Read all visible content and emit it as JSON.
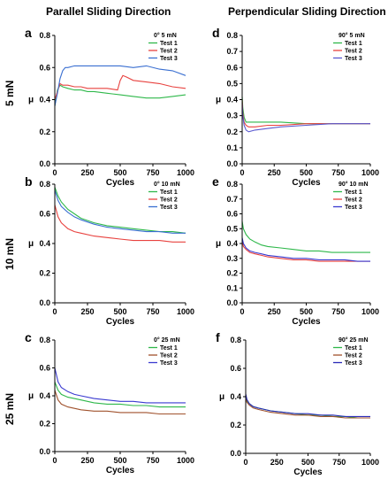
{
  "columns": [
    "Parallel Sliding Direction",
    "Perpendicular Sliding Direction"
  ],
  "rows": [
    "5 mN",
    "10 mN",
    "25 mN"
  ],
  "chart_data": [
    {
      "id": "a",
      "type": "line",
      "letter": "a",
      "legend_title": "0°   5 mN",
      "xlabel": "Cycles",
      "ylabel": "μ",
      "xlim": [
        0,
        1000
      ],
      "ylim": [
        0.0,
        0.8
      ],
      "xticks": [
        0,
        250,
        500,
        750,
        1000
      ],
      "yticks": [
        0.0,
        0.2,
        0.4,
        0.6,
        0.8
      ],
      "legend_position": "top-right",
      "series": [
        {
          "name": "Test 1",
          "color": "#2eb84a",
          "x": [
            0,
            20,
            40,
            60,
            100,
            150,
            200,
            250,
            300,
            400,
            500,
            600,
            700,
            800,
            900,
            1000
          ],
          "y": [
            0.36,
            0.46,
            0.49,
            0.48,
            0.47,
            0.46,
            0.46,
            0.45,
            0.45,
            0.44,
            0.43,
            0.42,
            0.41,
            0.41,
            0.42,
            0.43
          ]
        },
        {
          "name": "Test 2",
          "color": "#e8423f",
          "x": [
            0,
            20,
            40,
            60,
            100,
            150,
            200,
            250,
            300,
            400,
            480,
            500,
            520,
            550,
            600,
            700,
            800,
            900,
            1000
          ],
          "y": [
            0.4,
            0.45,
            0.5,
            0.49,
            0.49,
            0.48,
            0.48,
            0.47,
            0.47,
            0.47,
            0.46,
            0.52,
            0.55,
            0.54,
            0.52,
            0.51,
            0.5,
            0.48,
            0.47
          ]
        },
        {
          "name": "Test 3",
          "color": "#3a6fd1",
          "x": [
            0,
            20,
            40,
            60,
            80,
            100,
            150,
            200,
            250,
            300,
            400,
            500,
            600,
            700,
            800,
            900,
            1000
          ],
          "y": [
            0.36,
            0.44,
            0.53,
            0.58,
            0.6,
            0.6,
            0.61,
            0.61,
            0.61,
            0.61,
            0.61,
            0.61,
            0.6,
            0.61,
            0.59,
            0.58,
            0.55
          ]
        }
      ]
    },
    {
      "id": "d",
      "type": "line",
      "letter": "d",
      "legend_title": "90°   5 mN",
      "xlabel": "Cycles",
      "ylabel": "μ",
      "xlim": [
        0,
        1000
      ],
      "ylim": [
        0.0,
        0.8
      ],
      "xticks": [
        0,
        250,
        500,
        750,
        1000
      ],
      "yticks": [
        0.0,
        0.1,
        0.2,
        0.3,
        0.4,
        0.5,
        0.6,
        0.7,
        0.8
      ],
      "legend_position": "top-right",
      "series": [
        {
          "name": "Test 1",
          "color": "#2eb84a",
          "x": [
            0,
            5,
            15,
            30,
            50,
            100,
            200,
            300,
            500,
            700,
            1000
          ],
          "y": [
            0.42,
            0.35,
            0.29,
            0.26,
            0.26,
            0.26,
            0.26,
            0.26,
            0.25,
            0.25,
            0.25
          ]
        },
        {
          "name": "Test 2",
          "color": "#e8423f",
          "x": [
            0,
            5,
            15,
            30,
            50,
            100,
            200,
            300,
            500,
            700,
            1000
          ],
          "y": [
            0.4,
            0.32,
            0.26,
            0.24,
            0.23,
            0.23,
            0.24,
            0.24,
            0.25,
            0.25,
            0.25
          ]
        },
        {
          "name": "Test 3",
          "color": "#5a5ad0",
          "x": [
            0,
            5,
            15,
            30,
            50,
            100,
            200,
            300,
            500,
            700,
            1000
          ],
          "y": [
            0.38,
            0.3,
            0.24,
            0.21,
            0.2,
            0.21,
            0.22,
            0.23,
            0.24,
            0.25,
            0.25
          ]
        }
      ]
    },
    {
      "id": "b",
      "type": "line",
      "letter": "b",
      "legend_title": "0°  10 mN",
      "xlabel": "Cycles",
      "ylabel": "μ",
      "xlim": [
        0,
        1000
      ],
      "ylim": [
        0.0,
        0.8
      ],
      "xticks": [
        0,
        250,
        500,
        750,
        1000
      ],
      "yticks": [
        0.0,
        0.2,
        0.4,
        0.6,
        0.8
      ],
      "legend_position": "top-right",
      "series": [
        {
          "name": "Test 1",
          "color": "#2eb84a",
          "x": [
            0,
            25,
            50,
            100,
            150,
            200,
            300,
            400,
            500,
            600,
            700,
            800,
            900,
            1000
          ],
          "y": [
            0.78,
            0.72,
            0.68,
            0.63,
            0.6,
            0.57,
            0.54,
            0.52,
            0.51,
            0.5,
            0.49,
            0.48,
            0.48,
            0.47
          ]
        },
        {
          "name": "Test 2",
          "color": "#e8423f",
          "x": [
            0,
            25,
            50,
            100,
            150,
            200,
            300,
            400,
            500,
            600,
            700,
            800,
            900,
            1000
          ],
          "y": [
            0.66,
            0.58,
            0.54,
            0.5,
            0.48,
            0.47,
            0.45,
            0.44,
            0.43,
            0.42,
            0.42,
            0.42,
            0.41,
            0.41
          ]
        },
        {
          "name": "Test 3",
          "color": "#3a6fd1",
          "x": [
            0,
            25,
            50,
            100,
            150,
            200,
            300,
            400,
            500,
            600,
            700,
            800,
            900,
            1000
          ],
          "y": [
            0.76,
            0.69,
            0.65,
            0.61,
            0.58,
            0.56,
            0.53,
            0.51,
            0.5,
            0.49,
            0.48,
            0.48,
            0.47,
            0.47
          ]
        }
      ]
    },
    {
      "id": "e",
      "type": "line",
      "letter": "e",
      "legend_title": "90° 10 mN",
      "xlabel": "Cycles",
      "ylabel": "μ",
      "xlim": [
        0,
        1000
      ],
      "ylim": [
        0.0,
        0.8
      ],
      "xticks": [
        0,
        250,
        500,
        750,
        1000
      ],
      "yticks": [
        0.0,
        0.1,
        0.2,
        0.3,
        0.4,
        0.5,
        0.6,
        0.7,
        0.8
      ],
      "legend_position": "top-right",
      "series": [
        {
          "name": "Test 1",
          "color": "#2eb84a",
          "x": [
            0,
            10,
            30,
            60,
            100,
            150,
            200,
            300,
            400,
            500,
            600,
            700,
            800,
            900,
            1000
          ],
          "y": [
            0.55,
            0.5,
            0.46,
            0.43,
            0.41,
            0.39,
            0.38,
            0.37,
            0.36,
            0.35,
            0.35,
            0.34,
            0.34,
            0.34,
            0.34
          ]
        },
        {
          "name": "Test 2",
          "color": "#e8423f",
          "x": [
            0,
            10,
            30,
            60,
            100,
            150,
            200,
            300,
            400,
            500,
            600,
            700,
            800,
            900,
            1000
          ],
          "y": [
            0.42,
            0.38,
            0.36,
            0.34,
            0.33,
            0.32,
            0.31,
            0.3,
            0.29,
            0.29,
            0.28,
            0.28,
            0.28,
            0.28,
            0.28
          ]
        },
        {
          "name": "Test 3",
          "color": "#3a3ad0",
          "x": [
            0,
            10,
            30,
            60,
            100,
            150,
            200,
            300,
            400,
            500,
            600,
            700,
            800,
            900,
            1000
          ],
          "y": [
            0.44,
            0.4,
            0.37,
            0.35,
            0.34,
            0.33,
            0.32,
            0.31,
            0.3,
            0.3,
            0.29,
            0.29,
            0.29,
            0.28,
            0.28
          ]
        }
      ]
    },
    {
      "id": "c",
      "type": "line",
      "letter": "c",
      "legend_title": "0°  25 mN",
      "xlabel": "Cycles",
      "ylabel": "μ",
      "xlim": [
        0,
        1000
      ],
      "ylim": [
        0.0,
        0.8
      ],
      "xticks": [
        0,
        250,
        500,
        750,
        1000
      ],
      "yticks": [
        0.0,
        0.2,
        0.4,
        0.6,
        0.8
      ],
      "legend_position": "top-right",
      "series": [
        {
          "name": "Test 1",
          "color": "#2eb84a",
          "x": [
            0,
            25,
            50,
            100,
            150,
            200,
            300,
            400,
            500,
            600,
            700,
            800,
            900,
            1000
          ],
          "y": [
            0.5,
            0.44,
            0.41,
            0.39,
            0.38,
            0.37,
            0.35,
            0.34,
            0.34,
            0.33,
            0.33,
            0.32,
            0.32,
            0.32
          ]
        },
        {
          "name": "Test 2",
          "color": "#a0522d",
          "x": [
            0,
            25,
            50,
            100,
            150,
            200,
            300,
            400,
            500,
            600,
            700,
            800,
            900,
            1000
          ],
          "y": [
            0.44,
            0.37,
            0.34,
            0.32,
            0.31,
            0.3,
            0.29,
            0.29,
            0.28,
            0.28,
            0.28,
            0.27,
            0.27,
            0.27
          ]
        },
        {
          "name": "Test 3",
          "color": "#3a3ad0",
          "x": [
            0,
            25,
            50,
            100,
            150,
            200,
            300,
            400,
            500,
            600,
            700,
            800,
            900,
            1000
          ],
          "y": [
            0.6,
            0.5,
            0.46,
            0.43,
            0.41,
            0.4,
            0.38,
            0.37,
            0.36,
            0.36,
            0.35,
            0.35,
            0.35,
            0.35
          ]
        }
      ]
    },
    {
      "id": "f",
      "type": "line",
      "letter": "f",
      "legend_title": "90° 25 mN",
      "xlabel": "Cycles",
      "ylabel": "μ",
      "xlim": [
        0,
        1000
      ],
      "ylim": [
        0.0,
        0.8
      ],
      "xticks": [
        0,
        250,
        500,
        750,
        1000
      ],
      "yticks": [
        0.0,
        0.2,
        0.4,
        0.6,
        0.8
      ],
      "legend_position": "top-right",
      "series": [
        {
          "name": "Test 1",
          "color": "#2eb84a",
          "x": [
            0,
            10,
            30,
            60,
            100,
            150,
            200,
            300,
            400,
            500,
            600,
            700,
            800,
            900,
            1000
          ],
          "y": [
            0.4,
            0.37,
            0.35,
            0.33,
            0.32,
            0.31,
            0.3,
            0.29,
            0.28,
            0.27,
            0.27,
            0.26,
            0.26,
            0.25,
            0.25
          ]
        },
        {
          "name": "Test 2",
          "color": "#a0522d",
          "x": [
            0,
            10,
            30,
            60,
            100,
            150,
            200,
            300,
            400,
            500,
            600,
            700,
            800,
            900,
            1000
          ],
          "y": [
            0.39,
            0.36,
            0.34,
            0.32,
            0.31,
            0.3,
            0.29,
            0.28,
            0.27,
            0.27,
            0.26,
            0.26,
            0.25,
            0.25,
            0.25
          ]
        },
        {
          "name": "Test 3",
          "color": "#2a2ab8",
          "x": [
            0,
            10,
            30,
            60,
            100,
            150,
            200,
            300,
            400,
            500,
            600,
            700,
            800,
            900,
            1000
          ],
          "y": [
            0.42,
            0.38,
            0.35,
            0.33,
            0.32,
            0.31,
            0.3,
            0.29,
            0.28,
            0.28,
            0.27,
            0.27,
            0.26,
            0.26,
            0.26
          ]
        }
      ]
    }
  ]
}
